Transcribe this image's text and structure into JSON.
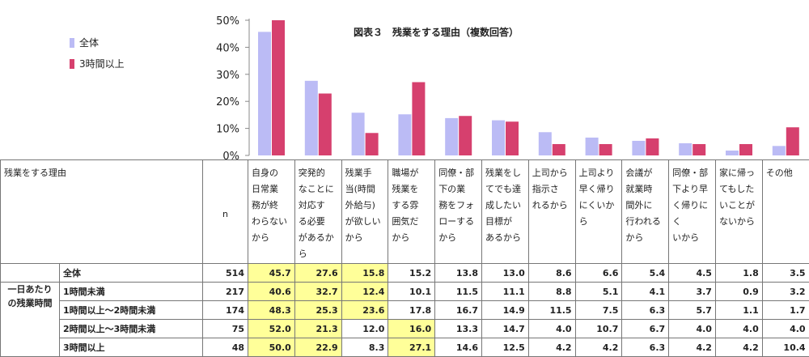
{
  "chart_data": {
    "type": "bar",
    "title": "図表３　残業をする理由（複数回答）",
    "categories": [
      "自身の日常業務が終わらないから",
      "突発的なことに対応する必要があるから",
      "残業手当(時間外給与)が欲しいから",
      "職場が残業をする雰囲気だから",
      "同僚・部下の業務をフォローするから",
      "残業をしてでも達成したい目標があるから",
      "上司から指示されるから",
      "上司より早く帰りにくいから",
      "会議が就業時間外に行われるから",
      "同僚・部下より早く帰りにくいから",
      "家に帰ってもしたいことがないから",
      "その他"
    ],
    "series": [
      {
        "name": "全体",
        "color": "#bbbbf5",
        "values": [
          45.7,
          27.6,
          15.8,
          15.2,
          13.8,
          13.0,
          8.6,
          6.6,
          5.4,
          4.5,
          1.8,
          3.5
        ]
      },
      {
        "name": "3時間以上",
        "color": "#d6406e",
        "values": [
          50.0,
          22.9,
          8.3,
          27.1,
          14.6,
          12.5,
          4.2,
          4.2,
          6.3,
          4.2,
          4.2,
          10.4
        ]
      }
    ],
    "ylim": [
      0,
      50
    ],
    "ytick_labels": [
      "0%",
      "10%",
      "20%",
      "30%",
      "40%",
      "50%"
    ],
    "legend_placement": "top-left"
  },
  "table": {
    "corner_label": "残業をする理由",
    "n_label": "n",
    "group_label": "一日あたりの残業時間",
    "header_lines": [
      [
        "自身の",
        "日常業",
        "務が終",
        "わらない",
        "から"
      ],
      [
        "突発的",
        "なことに",
        "対応す",
        "る必要",
        "があるか",
        "ら"
      ],
      [
        "残業手",
        "当(時間",
        "外給与)",
        "が欲しい",
        "から"
      ],
      [
        "職場が",
        "残業を",
        "する雰",
        "囲気だ",
        "から"
      ],
      [
        "同僚・部",
        "下の業",
        "務をフォ",
        "ローする",
        "から"
      ],
      [
        "残業をし",
        "てでも達",
        "成したい",
        "目標が",
        "あるから"
      ],
      [
        "上司から",
        "指示さ",
        "れるから"
      ],
      [
        "上司より",
        "早く帰り",
        "にくいか",
        "ら"
      ],
      [
        "会議が",
        "就業時",
        "間外に",
        "行われる",
        "から"
      ],
      [
        "同僚・部",
        "下より早",
        "く帰りにく",
        "いから"
      ],
      [
        "家に帰っ",
        "てもした",
        "いことが",
        "ないから"
      ],
      [
        "その他"
      ]
    ],
    "rows": [
      {
        "label": "全体",
        "n": "514",
        "values": [
          "45.7",
          "27.6",
          "15.8",
          "15.2",
          "13.8",
          "13.0",
          "8.6",
          "6.6",
          "5.4",
          "4.5",
          "1.8",
          "3.5"
        ],
        "hl": [
          0,
          1,
          2
        ]
      },
      {
        "label": "1時間未満",
        "n": "217",
        "values": [
          "40.6",
          "32.7",
          "12.4",
          "10.1",
          "11.5",
          "11.1",
          "8.8",
          "5.1",
          "4.1",
          "3.7",
          "0.9",
          "3.2"
        ],
        "hl": [
          0,
          1,
          2
        ]
      },
      {
        "label": "1時間以上～2時間未満",
        "n": "174",
        "values": [
          "48.3",
          "25.3",
          "23.6",
          "17.8",
          "16.7",
          "14.9",
          "11.5",
          "7.5",
          "6.3",
          "5.7",
          "1.1",
          "1.7"
        ],
        "hl": [
          0,
          1,
          2
        ]
      },
      {
        "label": "2時間以上～3時間未満",
        "n": "75",
        "values": [
          "52.0",
          "21.3",
          "12.0",
          "16.0",
          "13.3",
          "14.7",
          "4.0",
          "10.7",
          "6.7",
          "4.0",
          "4.0",
          "4.0"
        ],
        "hl": [
          0,
          1,
          3
        ]
      },
      {
        "label": "3時間以上",
        "n": "48",
        "values": [
          "50.0",
          "22.9",
          "8.3",
          "27.1",
          "14.6",
          "12.5",
          "4.2",
          "4.2",
          "6.3",
          "4.2",
          "4.2",
          "10.4"
        ],
        "hl": [
          0,
          1,
          3
        ]
      }
    ]
  }
}
